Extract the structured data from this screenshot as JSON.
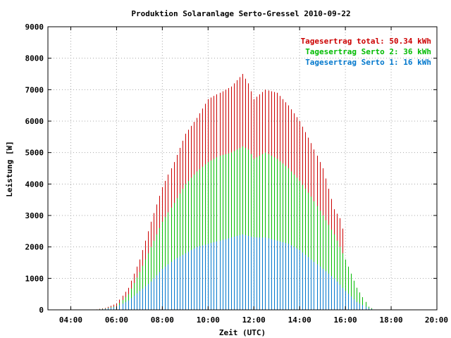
{
  "chart_data": {
    "type": "bar",
    "title": "Produktion Solaranlage Serto-Gressel 2010-09-22",
    "xlabel": "Zeit (UTC)",
    "ylabel": "Leistung [W]",
    "xlim": [
      3.0,
      20.0
    ],
    "ylim": [
      0,
      9000
    ],
    "x_ticks": [
      {
        "value": 4,
        "label": "04:00"
      },
      {
        "value": 6,
        "label": "06:00"
      },
      {
        "value": 8,
        "label": "08:00"
      },
      {
        "value": 10,
        "label": "10:00"
      },
      {
        "value": 12,
        "label": "12:00"
      },
      {
        "value": 14,
        "label": "14:00"
      },
      {
        "value": 16,
        "label": "16:00"
      },
      {
        "value": 18,
        "label": "18:00"
      },
      {
        "value": 20,
        "label": "20:00"
      }
    ],
    "y_ticks": [
      {
        "value": 0,
        "label": "0"
      },
      {
        "value": 1000,
        "label": "1000"
      },
      {
        "value": 2000,
        "label": "2000"
      },
      {
        "value": 3000,
        "label": "3000"
      },
      {
        "value": 4000,
        "label": "4000"
      },
      {
        "value": 5000,
        "label": "5000"
      },
      {
        "value": 6000,
        "label": "6000"
      },
      {
        "value": 7000,
        "label": "7000"
      },
      {
        "value": 8000,
        "label": "8000"
      },
      {
        "value": 9000,
        "label": "9000"
      }
    ],
    "grid": true,
    "legend_position": "top-right",
    "bar_interval_hours": 0.125,
    "series": [
      {
        "name": "Tagesertrag total: 50.34 kWh",
        "color": "#cc0000",
        "points": [
          [
            5.0,
            0
          ],
          [
            5.5,
            60
          ],
          [
            6.0,
            200
          ],
          [
            6.5,
            700
          ],
          [
            7.0,
            1600
          ],
          [
            7.5,
            2800
          ],
          [
            8.0,
            3900
          ],
          [
            8.5,
            4700
          ],
          [
            9.0,
            5600
          ],
          [
            9.5,
            6100
          ],
          [
            10.0,
            6700
          ],
          [
            10.5,
            6900
          ],
          [
            11.0,
            7100
          ],
          [
            11.5,
            7500
          ],
          [
            11.75,
            7200
          ],
          [
            12.0,
            6700
          ],
          [
            12.5,
            7000
          ],
          [
            13.0,
            6900
          ],
          [
            13.5,
            6500
          ],
          [
            14.0,
            6000
          ],
          [
            14.5,
            5300
          ],
          [
            15.0,
            4500
          ],
          [
            15.5,
            3200
          ],
          [
            15.85,
            2800
          ],
          [
            16.0,
            1500
          ],
          [
            16.5,
            700
          ],
          [
            17.0,
            100
          ],
          [
            17.25,
            0
          ]
        ]
      },
      {
        "name": "Tagesertrag Serto 2: 36 kWh",
        "color": "#00bb00",
        "points": [
          [
            5.0,
            0
          ],
          [
            5.5,
            40
          ],
          [
            6.0,
            120
          ],
          [
            6.5,
            500
          ],
          [
            7.0,
            1200
          ],
          [
            7.5,
            2000
          ],
          [
            8.0,
            2800
          ],
          [
            8.5,
            3400
          ],
          [
            9.0,
            4000
          ],
          [
            9.5,
            4400
          ],
          [
            10.0,
            4700
          ],
          [
            10.5,
            4900
          ],
          [
            11.0,
            5000
          ],
          [
            11.5,
            5200
          ],
          [
            11.75,
            5100
          ],
          [
            12.0,
            4800
          ],
          [
            12.5,
            5000
          ],
          [
            13.0,
            4800
          ],
          [
            13.5,
            4500
          ],
          [
            14.0,
            4100
          ],
          [
            14.5,
            3600
          ],
          [
            15.0,
            3000
          ],
          [
            15.5,
            2400
          ],
          [
            16.0,
            1600
          ],
          [
            16.5,
            700
          ],
          [
            17.0,
            100
          ],
          [
            17.25,
            0
          ]
        ]
      },
      {
        "name": "Tagesertrag Serto 1: 16 kWh",
        "color": "#0077cc",
        "points": [
          [
            5.0,
            0
          ],
          [
            5.5,
            30
          ],
          [
            6.0,
            100
          ],
          [
            6.5,
            300
          ],
          [
            7.0,
            600
          ],
          [
            7.5,
            900
          ],
          [
            8.0,
            1300
          ],
          [
            8.5,
            1600
          ],
          [
            9.0,
            1800
          ],
          [
            9.5,
            2000
          ],
          [
            10.0,
            2100
          ],
          [
            10.5,
            2200
          ],
          [
            11.0,
            2300
          ],
          [
            11.5,
            2400
          ],
          [
            12.0,
            2300
          ],
          [
            12.5,
            2300
          ],
          [
            13.0,
            2200
          ],
          [
            13.5,
            2100
          ],
          [
            14.0,
            1900
          ],
          [
            14.5,
            1600
          ],
          [
            15.0,
            1300
          ],
          [
            15.5,
            1000
          ],
          [
            16.0,
            600
          ],
          [
            16.5,
            250
          ],
          [
            17.0,
            50
          ],
          [
            17.25,
            0
          ]
        ]
      }
    ]
  }
}
